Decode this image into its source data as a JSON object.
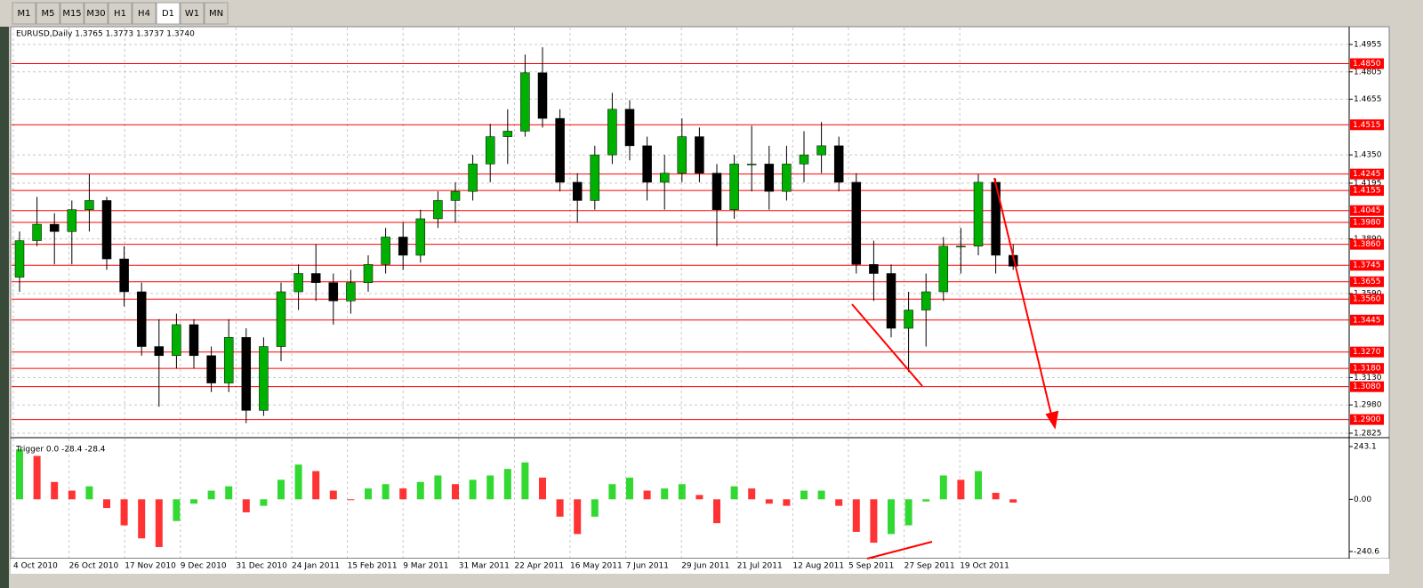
{
  "toolbar": {
    "timeframes": [
      "M1",
      "M5",
      "M15",
      "M30",
      "H1",
      "H4",
      "D1",
      "W1",
      "MN"
    ],
    "active_index": 6
  },
  "chart_data": [
    {
      "type": "candlestick",
      "title": "EURUSD,Daily  1.3765 1.3773 1.3737 1.3740",
      "ylim": [
        1.2825,
        1.4955
      ],
      "yticks": [
        1.4955,
        1.4805,
        1.4655,
        {
          "value": 1.435,
          "label": "1.4350"
        },
        1.4195,
        {
          "value": 1.389,
          "label": "1.3890"
        },
        {
          "value": 1.359,
          "label": "1.3590"
        },
        {
          "value": 1.313,
          "label": "1.3130"
        },
        {
          "value": 1.298,
          "label": "1.2980"
        },
        1.2825
      ],
      "levels": [
        {
          "value": 1.485,
          "label": "1.4850"
        },
        1.4515,
        1.4245,
        1.4155,
        1.4045,
        {
          "value": 1.398,
          "label": "1.3980"
        },
        {
          "value": 1.386,
          "label": "1.3860"
        },
        1.3745,
        1.3655,
        {
          "value": 1.356,
          "label": "1.3560"
        },
        1.3445,
        {
          "value": 1.327,
          "label": "1.3270"
        },
        {
          "value": 1.318,
          "label": "1.3180"
        },
        {
          "value": 1.308,
          "label": "1.3080"
        },
        {
          "value": 1.29,
          "label": "1.2900"
        }
      ],
      "level_color": "#ff0000",
      "bull_color": "#00b000",
      "bear_color": "#000000",
      "grid": true,
      "xticks": [
        "4 Oct 2010",
        "26 Oct 2010",
        "17 Nov 2010",
        "9 Dec 2010",
        "31 Dec 2010",
        "24 Jan 2011",
        "15 Feb 2011",
        "9 Mar 2011",
        "31 Mar 2011",
        "22 Apr 2011",
        "16 May 2011",
        "7 Jun 2011",
        "29 Jun 2011",
        "21 Jul 2011",
        "12 Aug 2011",
        "5 Sep 2011",
        "27 Sep 2011",
        "19 Oct 2011"
      ],
      "ohlc": [
        [
          1.368,
          1.393,
          1.36,
          1.388
        ],
        [
          1.388,
          1.412,
          1.385,
          1.397
        ],
        [
          1.397,
          1.403,
          1.375,
          1.393
        ],
        [
          1.393,
          1.41,
          1.375,
          1.405
        ],
        [
          1.405,
          1.4245,
          1.393,
          1.41
        ],
        [
          1.41,
          1.412,
          1.372,
          1.378
        ],
        [
          1.378,
          1.385,
          1.352,
          1.36
        ],
        [
          1.36,
          1.365,
          1.325,
          1.33
        ],
        [
          1.33,
          1.345,
          1.297,
          1.325
        ],
        [
          1.325,
          1.348,
          1.318,
          1.342
        ],
        [
          1.342,
          1.345,
          1.318,
          1.325
        ],
        [
          1.325,
          1.33,
          1.305,
          1.31
        ],
        [
          1.31,
          1.345,
          1.305,
          1.335
        ],
        [
          1.335,
          1.34,
          1.288,
          1.295
        ],
        [
          1.295,
          1.335,
          1.292,
          1.33
        ],
        [
          1.33,
          1.365,
          1.322,
          1.36
        ],
        [
          1.36,
          1.375,
          1.35,
          1.37
        ],
        [
          1.37,
          1.386,
          1.355,
          1.365
        ],
        [
          1.365,
          1.37,
          1.342,
          1.355
        ],
        [
          1.355,
          1.372,
          1.348,
          1.365
        ],
        [
          1.365,
          1.38,
          1.36,
          1.375
        ],
        [
          1.375,
          1.395,
          1.37,
          1.39
        ],
        [
          1.39,
          1.398,
          1.372,
          1.38
        ],
        [
          1.38,
          1.405,
          1.376,
          1.4
        ],
        [
          1.4,
          1.415,
          1.395,
          1.41
        ],
        [
          1.41,
          1.42,
          1.398,
          1.415
        ],
        [
          1.415,
          1.435,
          1.41,
          1.43
        ],
        [
          1.43,
          1.452,
          1.42,
          1.445
        ],
        [
          1.445,
          1.46,
          1.43,
          1.448
        ],
        [
          1.448,
          1.49,
          1.445,
          1.48
        ],
        [
          1.48,
          1.494,
          1.45,
          1.455
        ],
        [
          1.455,
          1.46,
          1.415,
          1.42
        ],
        [
          1.42,
          1.425,
          1.398,
          1.41
        ],
        [
          1.41,
          1.44,
          1.405,
          1.435
        ],
        [
          1.435,
          1.469,
          1.43,
          1.46
        ],
        [
          1.46,
          1.465,
          1.432,
          1.44
        ],
        [
          1.44,
          1.445,
          1.41,
          1.42
        ],
        [
          1.42,
          1.435,
          1.405,
          1.425
        ],
        [
          1.425,
          1.455,
          1.42,
          1.445
        ],
        [
          1.445,
          1.45,
          1.42,
          1.425
        ],
        [
          1.425,
          1.43,
          1.385,
          1.405
        ],
        [
          1.405,
          1.435,
          1.4,
          1.43
        ],
        [
          1.43,
          1.451,
          1.415,
          1.43
        ],
        [
          1.43,
          1.44,
          1.405,
          1.415
        ],
        [
          1.415,
          1.44,
          1.41,
          1.43
        ],
        [
          1.43,
          1.448,
          1.42,
          1.435
        ],
        [
          1.435,
          1.453,
          1.425,
          1.44
        ],
        [
          1.44,
          1.445,
          1.415,
          1.42
        ],
        [
          1.42,
          1.425,
          1.37,
          1.375
        ],
        [
          1.375,
          1.388,
          1.355,
          1.37
        ],
        [
          1.37,
          1.375,
          1.335,
          1.34
        ],
        [
          1.34,
          1.36,
          1.316,
          1.35
        ],
        [
          1.35,
          1.37,
          1.33,
          1.36
        ],
        [
          1.36,
          1.39,
          1.355,
          1.385
        ],
        [
          1.385,
          1.395,
          1.37,
          1.385
        ],
        [
          1.385,
          1.4245,
          1.38,
          1.42
        ],
        [
          1.42,
          1.422,
          1.37,
          1.38
        ],
        [
          1.38,
          1.386,
          1.372,
          1.374
        ]
      ]
    },
    {
      "type": "histogram",
      "title": "Trigger 0.0 -28.4 -28.4",
      "ylim": [
        -240.6,
        243.1
      ],
      "yticks": [
        243.1,
        {
          "value": 0,
          "label": "0.00"
        },
        -240.6
      ],
      "up_color": "#00d000",
      "down_color": "#ff0000",
      "values": [
        230,
        200,
        80,
        40,
        60,
        -40,
        -120,
        -180,
        -220,
        -100,
        -20,
        40,
        60,
        -60,
        -30,
        90,
        160,
        130,
        40,
        0,
        50,
        70,
        50,
        80,
        110,
        70,
        90,
        110,
        140,
        170,
        100,
        -80,
        -160,
        -80,
        70,
        100,
        40,
        50,
        70,
        20,
        -110,
        60,
        50,
        -20,
        -30,
        40,
        40,
        -30,
        -150,
        -200,
        -160,
        -120,
        -10,
        110,
        90,
        130,
        30,
        -15
      ]
    }
  ]
}
